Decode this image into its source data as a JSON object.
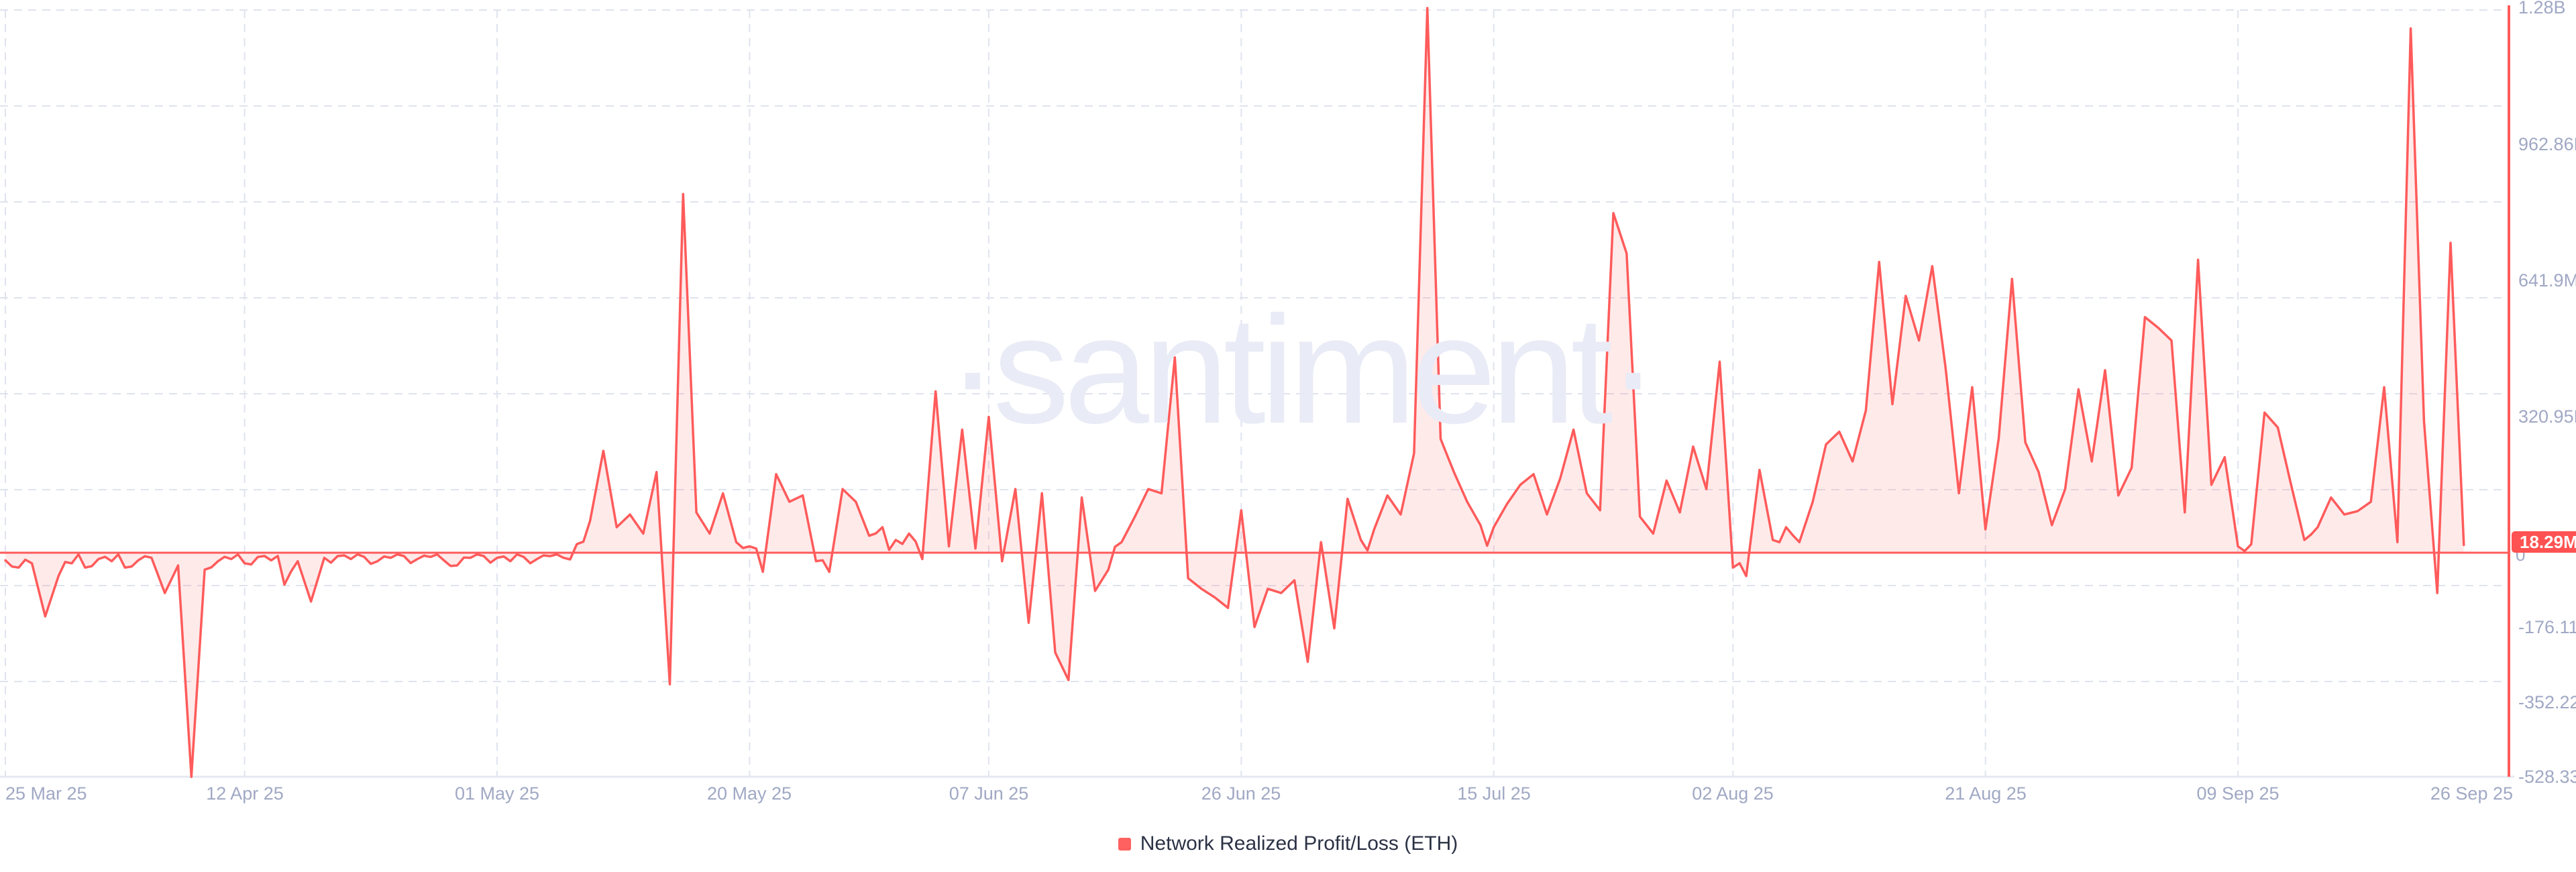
{
  "watermark": {
    "text": "·santiment·"
  },
  "legend": {
    "items": [
      {
        "label": "Network Realized Profit/Loss (ETH)",
        "swatch_color": "#ff6060"
      }
    ]
  },
  "y_axis": {
    "side": "right",
    "ticks": [
      {
        "label": "1.28B",
        "value": 1283.8
      },
      {
        "label": "962.86M",
        "value": 962.86
      },
      {
        "label": "641.9M",
        "value": 641.9
      },
      {
        "label": "320.95M",
        "value": 320.95
      },
      {
        "label": "-176.11M",
        "value": -176.11
      },
      {
        "label": "-352.22M",
        "value": -352.22
      },
      {
        "label": "-528.33M",
        "value": -528.33
      }
    ],
    "zero_label": "0",
    "last_value_badge": {
      "label": "18.29M",
      "value": 18.29
    }
  },
  "x_axis": {
    "ticks": [
      {
        "label": "25 Mar 25",
        "day": 0
      },
      {
        "label": "12 Apr 25",
        "day": 18
      },
      {
        "label": "01 May 25",
        "day": 37
      },
      {
        "label": "20 May 25",
        "day": 56
      },
      {
        "label": "07 Jun 25",
        "day": 74
      },
      {
        "label": "26 Jun 25",
        "day": 93
      },
      {
        "label": "15 Jul 25",
        "day": 112
      },
      {
        "label": "02 Aug 25",
        "day": 130
      },
      {
        "label": "21 Aug 25",
        "day": 149
      },
      {
        "label": "09 Sep 25",
        "day": 168
      },
      {
        "label": "26 Sep 25",
        "day": 185
      }
    ]
  },
  "chart_data": {
    "type": "area",
    "title": "Network Realized Profit/Loss (ETH)",
    "series_name": "Network Realized Profit/Loss (ETH)",
    "unit": "USD (M = millions, B = billions)",
    "interval": "1 day",
    "date_start": "2025-03-25",
    "date_end": "2025-09-26",
    "ylim": [
      -528.33,
      1283.8
    ],
    "grid": "dashed",
    "legend_position": "bottom-center",
    "line_color": "#ff5b5b",
    "fill_color": "rgba(255,91,91,0.13)",
    "last_value": 18.29,
    "values_millions": [
      -18,
      -35,
      -25,
      -150,
      -55,
      -25,
      -35,
      -15,
      -20,
      -35,
      -18,
      -12,
      -95,
      -30,
      -528,
      -40,
      -20,
      -15,
      -25,
      -10,
      -18,
      -75,
      -20,
      -115,
      -12,
      -8,
      -15,
      -10,
      -20,
      -12,
      -8,
      -15,
      -10,
      -18,
      -30,
      -12,
      -8,
      -12,
      -20,
      -10,
      -15,
      -8,
      -12,
      20,
      75,
      240,
      60,
      90,
      45,
      190,
      -310,
      845,
      95,
      45,
      140,
      25,
      15,
      -45,
      185,
      120,
      135,
      -20,
      -45,
      150,
      120,
      40,
      60,
      30,
      45,
      -15,
      380,
      15,
      290,
      10,
      320,
      -20,
      150,
      -165,
      140,
      -235,
      -300,
      130,
      -90,
      -40,
      25,
      85,
      150,
      140,
      460,
      -60,
      -85,
      -105,
      -130,
      100,
      -175,
      -85,
      -95,
      -65,
      -257,
      25,
      -178,
      127,
      30,
      55,
      135,
      90,
      234,
      1283,
      268,
      190,
      120,
      65,
      60,
      115,
      160,
      185,
      90,
      175,
      290,
      140,
      100,
      800,
      705,
      85,
      45,
      170,
      95,
      250,
      150,
      450,
      -35,
      -55,
      195,
      30,
      60,
      25,
      120,
      255,
      285,
      215,
      335,
      685,
      350,
      605,
      500,
      675,
      435,
      140,
      390,
      55,
      270,
      645,
      260,
      190,
      65,
      150,
      385,
      215,
      430,
      135,
      200,
      555,
      530,
      500,
      95,
      690,
      160,
      225,
      15,
      20,
      330,
      295,
      160,
      30,
      60,
      130,
      90,
      98,
      120,
      390,
      25,
      1235,
      310,
      -95,
      730,
      18.29
    ]
  },
  "colors": {
    "background": "#ffffff",
    "line": "#ff5b5b",
    "area_fill": "rgba(255,91,91,0.13)",
    "right_axis_line": "#ff5b5b",
    "badge_background": "#ff5252",
    "badge_text": "#ffffff",
    "gridline": "#dfe3ee",
    "bottom_axis_line": "#e5e8f1",
    "tick_label": "#a0a8c4",
    "legend_text": "#2c3245",
    "watermark": "#e9ebf6"
  }
}
